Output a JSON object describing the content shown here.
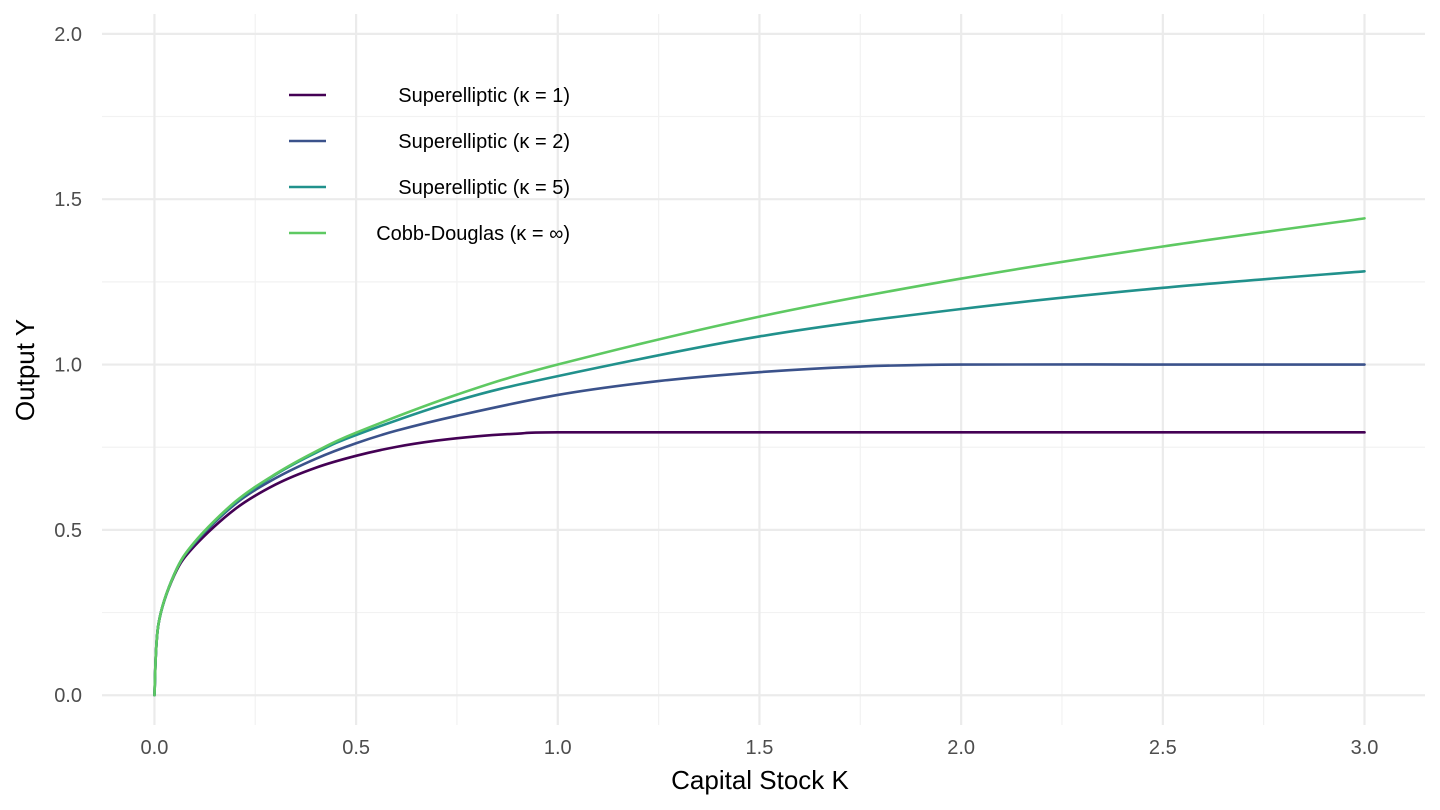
{
  "chart_data": {
    "type": "line",
    "title": "",
    "xlabel": "Capital Stock K",
    "ylabel": "Output Y",
    "xlim": [
      -0.13,
      3.15
    ],
    "ylim": [
      -0.09,
      2.06
    ],
    "x_ticks": [
      0.0,
      0.5,
      1.0,
      1.5,
      2.0,
      2.5,
      3.0
    ],
    "x_tick_labels": [
      "0.0",
      "0.5",
      "1.0",
      "1.5",
      "2.0",
      "2.5",
      "3.0"
    ],
    "y_ticks": [
      0.0,
      0.5,
      1.0,
      1.5,
      2.0
    ],
    "y_tick_labels": [
      "0.0",
      "0.5",
      "1.0",
      "1.5",
      "2.0"
    ],
    "grid": true,
    "legend_position": "top-left (inside plot)",
    "series": [
      {
        "name": "Superelliptic (κ = 1)",
        "color": "#440154",
        "x": [
          0,
          0.01,
          0.05,
          0.1,
          0.2,
          0.3,
          0.4,
          0.5,
          0.6,
          0.7,
          0.8,
          0.9,
          1.0,
          1.5,
          2.0,
          2.5,
          3.0
        ],
        "y": [
          0,
          0.215,
          0.365,
          0.452,
          0.563,
          0.637,
          0.688,
          0.724,
          0.751,
          0.77,
          0.783,
          0.791,
          0.795,
          0.795,
          0.795,
          0.795,
          0.795
        ]
      },
      {
        "name": "Superelliptic (κ = 2)",
        "color": "#3b528b",
        "x": [
          0,
          0.01,
          0.05,
          0.1,
          0.2,
          0.3,
          0.4,
          0.5,
          0.6,
          0.75,
          1.0,
          1.25,
          1.5,
          1.75,
          2.0,
          2.5,
          3.0
        ],
        "y": [
          0,
          0.215,
          0.368,
          0.46,
          0.578,
          0.656,
          0.715,
          0.762,
          0.8,
          0.845,
          0.908,
          0.95,
          0.977,
          0.994,
          1.0,
          1.0,
          1.0
        ]
      },
      {
        "name": "Superelliptic (κ = 5)",
        "color": "#21918c",
        "x": [
          0,
          0.01,
          0.05,
          0.1,
          0.2,
          0.3,
          0.4,
          0.5,
          0.75,
          1.0,
          1.5,
          2.0,
          2.5,
          3.0
        ],
        "y": [
          0,
          0.215,
          0.368,
          0.463,
          0.582,
          0.667,
          0.733,
          0.787,
          0.891,
          0.965,
          1.085,
          1.168,
          1.232,
          1.282
        ]
      },
      {
        "name": "Cobb-Douglas (κ = ∞)",
        "color": "#5ec962",
        "x": [
          0,
          0.01,
          0.05,
          0.1,
          0.2,
          0.3,
          0.4,
          0.5,
          0.75,
          1.0,
          1.5,
          2.0,
          2.5,
          3.0
        ],
        "y": [
          0,
          0.215,
          0.368,
          0.464,
          0.585,
          0.669,
          0.737,
          0.794,
          0.909,
          1.0,
          1.145,
          1.26,
          1.357,
          1.442
        ]
      }
    ]
  }
}
